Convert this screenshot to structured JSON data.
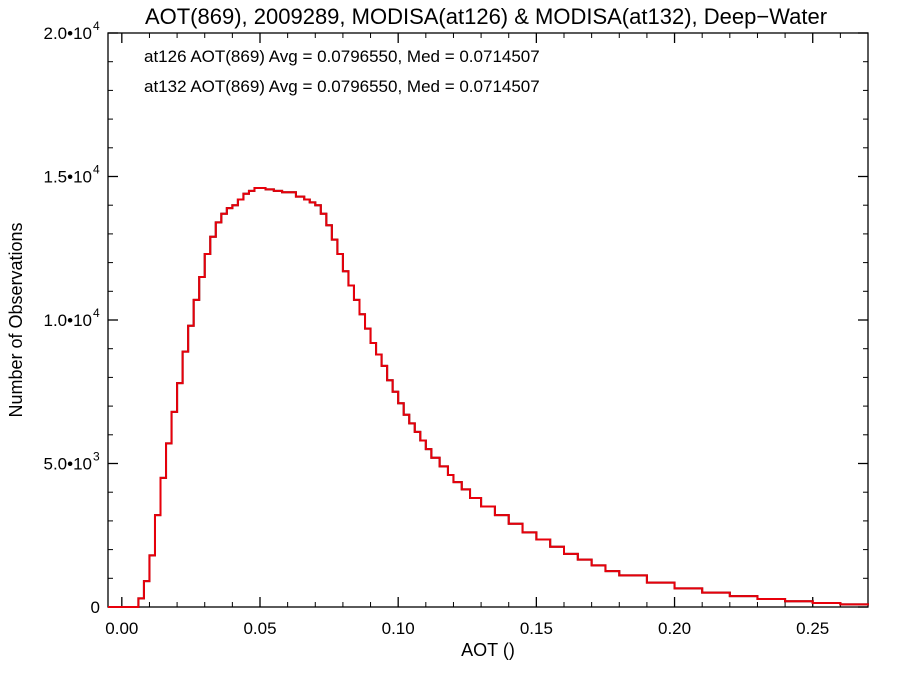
{
  "chart_data": {
    "type": "line",
    "title": "AOT(869), 2009289, MODISA(at126) & MODISA(at132), Deep−Water",
    "xlabel": "AOT ()",
    "ylabel": "Number of Observations",
    "xlim": [
      -0.005,
      0.27
    ],
    "ylim": [
      0,
      20000
    ],
    "x_ticks": [
      {
        "value": 0.0,
        "label": "0.00"
      },
      {
        "value": 0.05,
        "label": "0.05"
      },
      {
        "value": 0.1,
        "label": "0.10"
      },
      {
        "value": 0.15,
        "label": "0.15"
      },
      {
        "value": 0.2,
        "label": "0.20"
      },
      {
        "value": 0.25,
        "label": "0.25"
      }
    ],
    "y_ticks": [
      {
        "value": 0,
        "label": "0",
        "exp": ""
      },
      {
        "value": 5000,
        "label": "5.0•10",
        "exp": "3"
      },
      {
        "value": 10000,
        "label": "1.0•10",
        "exp": "4"
      },
      {
        "value": 15000,
        "label": "1.5•10",
        "exp": "4"
      },
      {
        "value": 20000,
        "label": "2.0•10",
        "exp": "4"
      }
    ],
    "annotations": [
      {
        "text": "at126 AOT(869) Avg = 0.0796550, Med = 0.0714507",
        "color": "#000000"
      },
      {
        "text": "at132 AOT(869) Avg = 0.0796550, Med = 0.0714507",
        "color": "#e8000b"
      }
    ],
    "series": [
      {
        "color": "#000000",
        "x": [
          -0.005,
          0.006,
          0.008,
          0.01,
          0.012,
          0.014,
          0.016,
          0.018,
          0.02,
          0.022,
          0.024,
          0.026,
          0.028,
          0.03,
          0.032,
          0.034,
          0.036,
          0.038,
          0.04,
          0.042,
          0.044,
          0.046,
          0.048,
          0.05,
          0.052,
          0.055,
          0.058,
          0.06,
          0.063,
          0.066,
          0.068,
          0.07,
          0.072,
          0.074,
          0.076,
          0.078,
          0.08,
          0.082,
          0.084,
          0.086,
          0.088,
          0.09,
          0.092,
          0.094,
          0.096,
          0.098,
          0.1,
          0.102,
          0.104,
          0.106,
          0.108,
          0.11,
          0.112,
          0.115,
          0.118,
          0.12,
          0.123,
          0.126,
          0.13,
          0.135,
          0.14,
          0.145,
          0.15,
          0.155,
          0.16,
          0.165,
          0.17,
          0.175,
          0.18,
          0.19,
          0.2,
          0.21,
          0.22,
          0.23,
          0.24,
          0.25,
          0.26,
          0.27
        ],
        "y": [
          0,
          300,
          900,
          1800,
          3200,
          4500,
          5700,
          6800,
          7800,
          8900,
          9800,
          10700,
          11500,
          12300,
          12900,
          13400,
          13700,
          13900,
          14000,
          14200,
          14400,
          14500,
          14600,
          14600,
          14550,
          14500,
          14450,
          14450,
          14300,
          14200,
          14100,
          14000,
          13700,
          13300,
          12800,
          12300,
          11700,
          11200,
          10700,
          10200,
          9700,
          9200,
          8800,
          8400,
          7900,
          7500,
          7100,
          6700,
          6400,
          6100,
          5800,
          5500,
          5200,
          4900,
          4600,
          4350,
          4100,
          3800,
          3500,
          3200,
          2900,
          2600,
          2350,
          2100,
          1850,
          1650,
          1450,
          1250,
          1100,
          850,
          650,
          500,
          380,
          280,
          200,
          140,
          90,
          60
        ]
      },
      {
        "color": "#e8000b",
        "x": [
          -0.005,
          0.006,
          0.008,
          0.01,
          0.012,
          0.014,
          0.016,
          0.018,
          0.02,
          0.022,
          0.024,
          0.026,
          0.028,
          0.03,
          0.032,
          0.034,
          0.036,
          0.038,
          0.04,
          0.042,
          0.044,
          0.046,
          0.048,
          0.05,
          0.052,
          0.055,
          0.058,
          0.06,
          0.063,
          0.066,
          0.068,
          0.07,
          0.072,
          0.074,
          0.076,
          0.078,
          0.08,
          0.082,
          0.084,
          0.086,
          0.088,
          0.09,
          0.092,
          0.094,
          0.096,
          0.098,
          0.1,
          0.102,
          0.104,
          0.106,
          0.108,
          0.11,
          0.112,
          0.115,
          0.118,
          0.12,
          0.123,
          0.126,
          0.13,
          0.135,
          0.14,
          0.145,
          0.15,
          0.155,
          0.16,
          0.165,
          0.17,
          0.175,
          0.18,
          0.19,
          0.2,
          0.21,
          0.22,
          0.23,
          0.24,
          0.25,
          0.26,
          0.27
        ],
        "y": [
          0,
          300,
          900,
          1800,
          3200,
          4500,
          5700,
          6800,
          7800,
          8900,
          9800,
          10700,
          11500,
          12300,
          12900,
          13400,
          13700,
          13900,
          14000,
          14200,
          14400,
          14500,
          14600,
          14600,
          14550,
          14500,
          14450,
          14450,
          14300,
          14200,
          14100,
          14000,
          13700,
          13300,
          12800,
          12300,
          11700,
          11200,
          10700,
          10200,
          9700,
          9200,
          8800,
          8400,
          7900,
          7500,
          7100,
          6700,
          6400,
          6100,
          5800,
          5500,
          5200,
          4900,
          4600,
          4350,
          4100,
          3800,
          3500,
          3200,
          2900,
          2600,
          2350,
          2100,
          1850,
          1650,
          1450,
          1250,
          1100,
          850,
          650,
          500,
          380,
          280,
          200,
          140,
          90,
          60
        ]
      }
    ],
    "grid": false
  }
}
